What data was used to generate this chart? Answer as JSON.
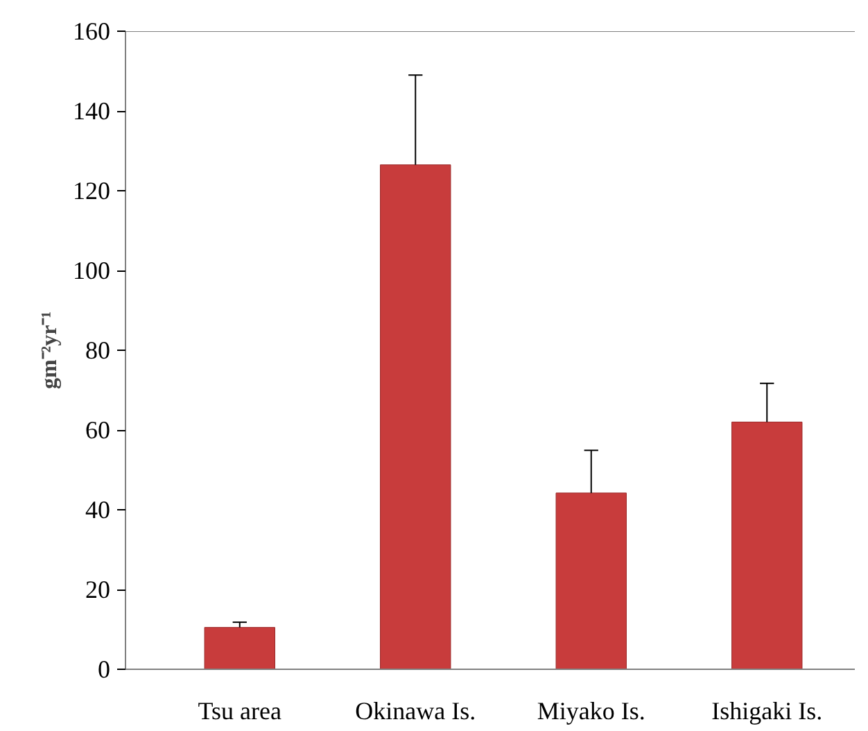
{
  "chart_data": {
    "type": "bar",
    "ylabel": "gm⁻²yr⁻¹",
    "categories": [
      "Tsu area",
      "Okinawa Is.",
      "Miyako Is.",
      "Ishigaki Is."
    ],
    "values": [
      10.5,
      126.5,
      44.2,
      62
    ],
    "errors": [
      [
        10.5,
        11.8
      ],
      [
        126.5,
        149
      ],
      [
        44.2,
        54.9
      ],
      [
        62,
        71.7
      ]
    ],
    "color": "#c83c3c",
    "ylim": [
      0,
      160
    ],
    "yticks": [
      0,
      20,
      40,
      60,
      80,
      100,
      120,
      140,
      160
    ],
    "grid": false
  }
}
